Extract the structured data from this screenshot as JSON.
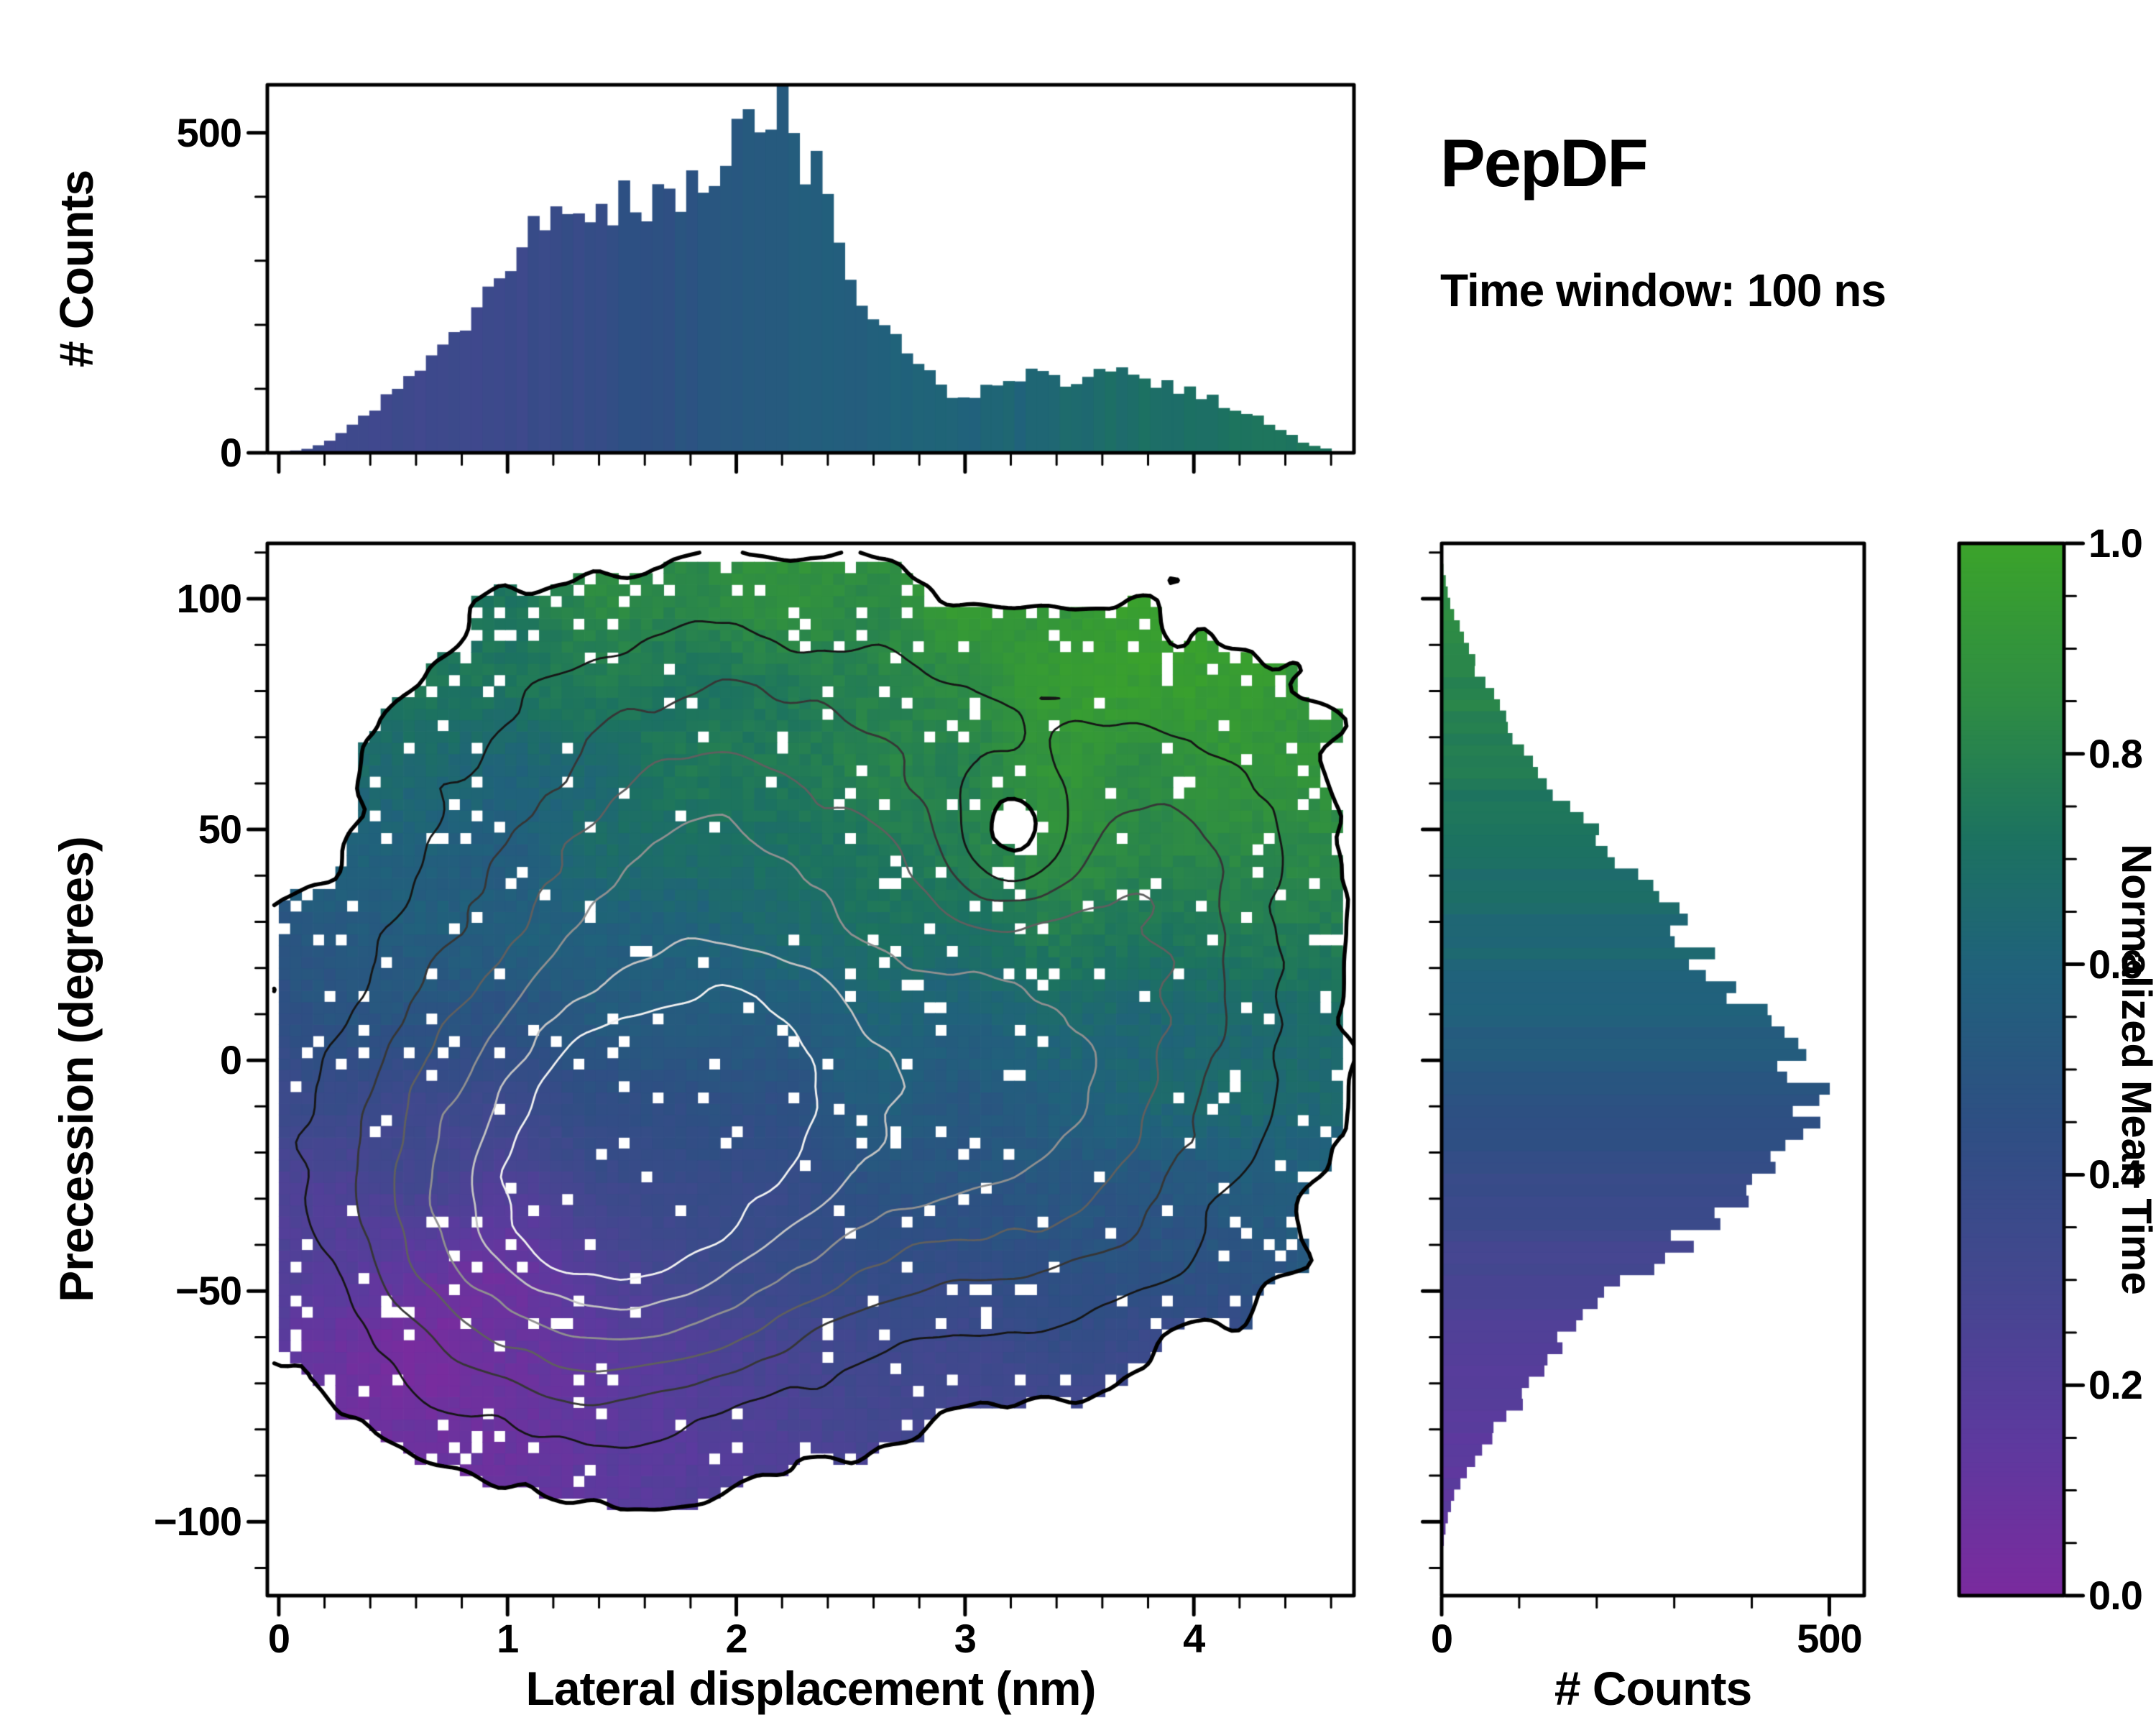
{
  "title": "PepDF",
  "subtitle": "Time window: 100 ns",
  "colors": {
    "frame": "#000000",
    "background": "#ffffff"
  },
  "colormap": {
    "name": "normalized-mean-time",
    "stops": [
      [
        0.0,
        "#7a2b9e"
      ],
      [
        0.15,
        "#5c3a9e"
      ],
      [
        0.3,
        "#43478f"
      ],
      [
        0.45,
        "#2e4f83"
      ],
      [
        0.6,
        "#20627b"
      ],
      [
        0.72,
        "#1c7260"
      ],
      [
        0.85,
        "#2e8c44"
      ],
      [
        1.0,
        "#3ba32b"
      ]
    ]
  },
  "chart_data": [
    {
      "id": "main-joint-heatmap",
      "type": "heatmap",
      "xlabel": "Lateral displacement (nm)",
      "ylabel": "Precession (degrees)",
      "xlim": [
        -0.05,
        4.7
      ],
      "ylim": [
        -116,
        112
      ],
      "xticks": [
        {
          "v": 0,
          "label": "0"
        },
        {
          "v": 1,
          "label": "1"
        },
        {
          "v": 2,
          "label": "2"
        },
        {
          "v": 3,
          "label": "3"
        },
        {
          "v": 4,
          "label": "4"
        }
      ],
      "yticks": [
        {
          "v": -100,
          "label": "−100"
        },
        {
          "v": -50,
          "label": "−50"
        },
        {
          "v": 0,
          "label": "0"
        },
        {
          "v": 50,
          "label": "50"
        },
        {
          "v": 100,
          "label": "100"
        }
      ],
      "colorbar": {
        "label": "Normalized Mean Time",
        "lim": [
          0,
          1
        ],
        "ticks": [
          {
            "v": 0.0,
            "label": "0.0"
          },
          {
            "v": 0.2,
            "label": "0.2"
          },
          {
            "v": 0.4,
            "label": "0.4"
          },
          {
            "v": 0.6,
            "label": "0.6"
          },
          {
            "v": 0.8,
            "label": "0.8"
          },
          {
            "v": 1.0,
            "label": "1.0"
          }
        ]
      },
      "grid": {
        "nx": 94,
        "ny": 90,
        "x_range": [
          0,
          4.65
        ],
        "y_range": [
          -112,
          108
        ]
      },
      "model": {
        "density_blobs": [
          [
            1.8,
            -5,
            0.9,
            35,
            1.0
          ],
          [
            1.3,
            -40,
            0.7,
            28,
            0.7
          ],
          [
            1.9,
            60,
            0.8,
            30,
            0.52
          ],
          [
            3.7,
            40,
            0.62,
            34,
            0.48
          ],
          [
            3.4,
            -18,
            0.65,
            30,
            0.5
          ],
          [
            3.2,
            48,
            0.22,
            12,
            -0.5
          ]
        ],
        "presence_threshold": 0.13,
        "noise_amp": 0.06,
        "mean_time": {
          "base": 0.5,
          "y_slope": 0.0032,
          "x_slope": 0.055,
          "x_ref": 1.8,
          "blobs": [
            [
              0.95,
              -58,
              0.55,
              28,
              -0.22
            ],
            [
              3.5,
              45,
              0.7,
              30,
              0.1
            ]
          ]
        },
        "contour_levels": [
          0.13,
          0.3,
          0.47,
          0.64,
          0.81,
          0.98,
          1.12
        ],
        "contour_colors": [
          "#000000",
          "#161616",
          "#363636",
          "#5f5f5f",
          "#909090",
          "#c3c3c3",
          "#f1f1f1"
        ],
        "contour_widths": [
          5.5,
          2.8,
          2.8,
          2.8,
          2.8,
          2.8,
          2.8
        ]
      }
    },
    {
      "id": "top-histogram",
      "type": "bar",
      "ylabel": "# Counts",
      "ylim": [
        0,
        575
      ],
      "yticks": [
        {
          "v": 0,
          "label": "0"
        },
        {
          "v": 500,
          "label": "500"
        }
      ],
      "bins": 94,
      "profile": [
        [
          0,
          0
        ],
        [
          0.15,
          8
        ],
        [
          0.3,
          35
        ],
        [
          0.45,
          80
        ],
        [
          0.6,
          130
        ],
        [
          0.75,
          185
        ],
        [
          0.9,
          240
        ],
        [
          1.0,
          300
        ],
        [
          1.1,
          330
        ],
        [
          1.2,
          365
        ],
        [
          1.3,
          385
        ],
        [
          1.45,
          395
        ],
        [
          1.55,
          410
        ],
        [
          1.65,
          380
        ],
        [
          1.75,
          400
        ],
        [
          1.85,
          425
        ],
        [
          1.95,
          470
        ],
        [
          2.05,
          520
        ],
        [
          2.1,
          548
        ],
        [
          2.2,
          532
        ],
        [
          2.3,
          470
        ],
        [
          2.4,
          385
        ],
        [
          2.5,
          275
        ],
        [
          2.6,
          215
        ],
        [
          2.7,
          170
        ],
        [
          2.8,
          128
        ],
        [
          2.9,
          102
        ],
        [
          3.0,
          88
        ],
        [
          3.1,
          105
        ],
        [
          3.2,
          118
        ],
        [
          3.3,
          122
        ],
        [
          3.4,
          112
        ],
        [
          3.5,
          115
        ],
        [
          3.6,
          122
        ],
        [
          3.7,
          128
        ],
        [
          3.8,
          112
        ],
        [
          3.9,
          102
        ],
        [
          4.0,
          92
        ],
        [
          4.1,
          80
        ],
        [
          4.2,
          66
        ],
        [
          4.3,
          50
        ],
        [
          4.4,
          30
        ],
        [
          4.5,
          14
        ],
        [
          4.6,
          5
        ],
        [
          4.65,
          0
        ]
      ]
    },
    {
      "id": "right-histogram",
      "type": "bar",
      "orientation": "horizontal",
      "xlabel": "# Counts",
      "xlim": [
        0,
        545
      ],
      "xticks": [
        {
          "v": 0,
          "label": "0"
        },
        {
          "v": 500,
          "label": "500"
        }
      ],
      "bins": 90,
      "profile": [
        [
          -108,
          0
        ],
        [
          -100,
          6
        ],
        [
          -95,
          14
        ],
        [
          -90,
          28
        ],
        [
          -85,
          48
        ],
        [
          -80,
          68
        ],
        [
          -75,
          95
        ],
        [
          -70,
          118
        ],
        [
          -65,
          140
        ],
        [
          -60,
          158
        ],
        [
          -55,
          192
        ],
        [
          -50,
          228
        ],
        [
          -45,
          266
        ],
        [
          -40,
          308
        ],
        [
          -35,
          348
        ],
        [
          -30,
          382
        ],
        [
          -25,
          418
        ],
        [
          -20,
          448
        ],
        [
          -15,
          470
        ],
        [
          -10,
          498
        ],
        [
          -5,
          482
        ],
        [
          0,
          452
        ],
        [
          5,
          428
        ],
        [
          10,
          402
        ],
        [
          15,
          385
        ],
        [
          20,
          355
        ],
        [
          25,
          332
        ],
        [
          30,
          302
        ],
        [
          35,
          268
        ],
        [
          40,
          238
        ],
        [
          45,
          208
        ],
        [
          50,
          188
        ],
        [
          55,
          158
        ],
        [
          60,
          136
        ],
        [
          65,
          116
        ],
        [
          70,
          100
        ],
        [
          75,
          86
        ],
        [
          80,
          60
        ],
        [
          85,
          44
        ],
        [
          90,
          32
        ],
        [
          95,
          20
        ],
        [
          100,
          10
        ],
        [
          105,
          4
        ],
        [
          108,
          0
        ]
      ]
    }
  ]
}
